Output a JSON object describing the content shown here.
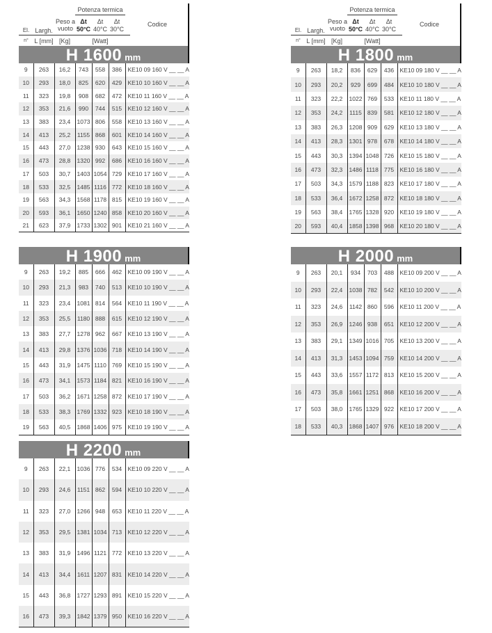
{
  "header": {
    "potenza_termica": "Potenza termica",
    "el": "El.",
    "largh": "Largh.",
    "peso": "Peso a vuoto",
    "dt50": "Δt",
    "dt50_temp": "50°C",
    "dt40": "Δt",
    "dt40_temp": "40°C",
    "dt30": "Δt",
    "dt30_temp": "30°C",
    "codice": "Codice",
    "unit_n": "n°",
    "unit_l": "L [mm]",
    "unit_kg": "[Kg]",
    "unit_watt": "[Watt]"
  },
  "tables": [
    {
      "title": "H 1600",
      "unit": "mm",
      "rows": [
        [
          "9",
          "263",
          "16,2",
          "743",
          "558",
          "386",
          "KE10 09 160 V __ __ A"
        ],
        [
          "10",
          "293",
          "18,0",
          "825",
          "620",
          "429",
          "KE10 10 160 V __ __ A"
        ],
        [
          "11",
          "323",
          "19,8",
          "908",
          "682",
          "472",
          "KE10 11 160 V __ __ A"
        ],
        [
          "12",
          "353",
          "21,6",
          "990",
          "744",
          "515",
          "KE10 12 160 V __ __ A"
        ],
        [
          "13",
          "383",
          "23,4",
          "1073",
          "806",
          "558",
          "KE10 13 160 V __ __ A"
        ],
        [
          "14",
          "413",
          "25,2",
          "1155",
          "868",
          "601",
          "KE10 14 160 V __ __ A"
        ],
        [
          "15",
          "443",
          "27,0",
          "1238",
          "930",
          "643",
          "KE10 15 160 V __ __ A"
        ],
        [
          "16",
          "473",
          "28,8",
          "1320",
          "992",
          "686",
          "KE10 16 160 V __ __ A"
        ],
        [
          "17",
          "503",
          "30,7",
          "1403",
          "1054",
          "729",
          "KE10 17 160 V __ __ A"
        ],
        [
          "18",
          "533",
          "32,5",
          "1485",
          "1116",
          "772",
          "KE10 18 160 V __ __ A"
        ],
        [
          "19",
          "563",
          "34,3",
          "1568",
          "1178",
          "815",
          "KE10 19 160 V __ __ A"
        ],
        [
          "20",
          "593",
          "36,1",
          "1650",
          "1240",
          "858",
          "KE10 20 160 V __ __ A"
        ],
        [
          "21",
          "623",
          "37,9",
          "1733",
          "1302",
          "901",
          "KE10 21 160 V __ __ A"
        ]
      ]
    },
    {
      "title": "H 1800",
      "unit": "mm",
      "rows": [
        [
          "9",
          "263",
          "18,2",
          "836",
          "629",
          "436",
          "KE10 09 180 V __ __ A"
        ],
        [
          "10",
          "293",
          "20,2",
          "929",
          "699",
          "484",
          "KE10 10 180 V __ __ A"
        ],
        [
          "11",
          "323",
          "22,2",
          "1022",
          "769",
          "533",
          "KE10 11 180 V __ __ A"
        ],
        [
          "12",
          "353",
          "24,2",
          "1115",
          "839",
          "581",
          "KE10 12 180 V __ __ A"
        ],
        [
          "13",
          "383",
          "26,3",
          "1208",
          "909",
          "629",
          "KE10 13 180 V __ __ A"
        ],
        [
          "14",
          "413",
          "28,3",
          "1301",
          "978",
          "678",
          "KE10 14 180 V __ __ A"
        ],
        [
          "15",
          "443",
          "30,3",
          "1394",
          "1048",
          "726",
          "KE10 15 180 V __ __ A"
        ],
        [
          "16",
          "473",
          "32,3",
          "1486",
          "1118",
          "775",
          "KE10 16 180 V __ __ A"
        ],
        [
          "17",
          "503",
          "34,3",
          "1579",
          "1188",
          "823",
          "KE10 17 180 V __ __ A"
        ],
        [
          "18",
          "533",
          "36,4",
          "1672",
          "1258",
          "872",
          "KE10 18 180 V __ __ A"
        ],
        [
          "19",
          "563",
          "38,4",
          "1765",
          "1328",
          "920",
          "KE10 19 180 V __ __ A"
        ],
        [
          "20",
          "593",
          "40,4",
          "1858",
          "1398",
          "968",
          "KE10 20 180 V __ __ A"
        ]
      ]
    },
    {
      "title": "H 1900",
      "unit": "mm",
      "rows": [
        [
          "9",
          "263",
          "19,2",
          "885",
          "666",
          "462",
          "KE10 09 190 V __ __ A"
        ],
        [
          "10",
          "293",
          "21,3",
          "983",
          "740",
          "513",
          "KE10 10 190 V __ __ A"
        ],
        [
          "11",
          "323",
          "23,4",
          "1081",
          "814",
          "564",
          "KE10 11 190 V __ __ A"
        ],
        [
          "12",
          "353",
          "25,5",
          "1180",
          "888",
          "615",
          "KE10 12 190 V __ __ A"
        ],
        [
          "13",
          "383",
          "27,7",
          "1278",
          "962",
          "667",
          "KE10 13 190 V __ __ A"
        ],
        [
          "14",
          "413",
          "29,8",
          "1376",
          "1036",
          "718",
          "KE10 14 190 V __ __ A"
        ],
        [
          "15",
          "443",
          "31,9",
          "1475",
          "1110",
          "769",
          "KE10 15 190 V __ __ A"
        ],
        [
          "16",
          "473",
          "34,1",
          "1573",
          "1184",
          "821",
          "KE10 16 190 V __ __ A"
        ],
        [
          "17",
          "503",
          "36,2",
          "1671",
          "1258",
          "872",
          "KE10 17 190 V __ __ A"
        ],
        [
          "18",
          "533",
          "38,3",
          "1769",
          "1332",
          "923",
          "KE10 18 190 V __ __ A"
        ],
        [
          "19",
          "563",
          "40,5",
          "1868",
          "1406",
          "975",
          "KE10 19 190 V __ __ A"
        ]
      ]
    },
    {
      "title": "H 2000",
      "unit": "mm",
      "rows": [
        [
          "9",
          "263",
          "20,1",
          "934",
          "703",
          "488",
          "KE10 09 200 V __ __ A"
        ],
        [
          "10",
          "293",
          "22,4",
          "1038",
          "782",
          "542",
          "KE10 10 200 V __ __ A"
        ],
        [
          "11",
          "323",
          "24,6",
          "1142",
          "860",
          "596",
          "KE10 11 200 V __ __ A"
        ],
        [
          "12",
          "353",
          "26,9",
          "1246",
          "938",
          "651",
          "KE10 12 200 V __ __ A"
        ],
        [
          "13",
          "383",
          "29,1",
          "1349",
          "1016",
          "705",
          "KE10 13 200 V __ __ A"
        ],
        [
          "14",
          "413",
          "31,3",
          "1453",
          "1094",
          "759",
          "KE10 14 200 V __ __ A"
        ],
        [
          "15",
          "443",
          "33,6",
          "1557",
          "1172",
          "813",
          "KE10 15 200 V __ __ A"
        ],
        [
          "16",
          "473",
          "35,8",
          "1661",
          "1251",
          "868",
          "KE10 16 200 V __ __ A"
        ],
        [
          "17",
          "503",
          "38,0",
          "1765",
          "1329",
          "922",
          "KE10 17 200 V __ __ A"
        ],
        [
          "18",
          "533",
          "40,3",
          "1868",
          "1407",
          "976",
          "KE10 18 200 V __ __ A"
        ]
      ]
    },
    {
      "title": "H 2200",
      "unit": "mm",
      "rows": [
        [
          "9",
          "263",
          "22,1",
          "1036",
          "776",
          "534",
          "KE10 09 220 V __ __ A"
        ],
        [
          "10",
          "293",
          "24,6",
          "1151",
          "862",
          "594",
          "KE10 10 220 V __ __ A"
        ],
        [
          "11",
          "323",
          "27,0",
          "1266",
          "948",
          "653",
          "KE10 11 220 V __ __ A"
        ],
        [
          "12",
          "353",
          "29,5",
          "1381",
          "1034",
          "713",
          "KE10 12 220 V __ __ A"
        ],
        [
          "13",
          "383",
          "31,9",
          "1496",
          "1121",
          "772",
          "KE10 13 220 V __ __ A"
        ],
        [
          "14",
          "413",
          "34,4",
          "1611",
          "1207",
          "831",
          "KE10 14 220 V __ __ A"
        ],
        [
          "15",
          "443",
          "36,8",
          "1727",
          "1293",
          "891",
          "KE10 15 220 V __ __ A"
        ],
        [
          "16",
          "473",
          "39,3",
          "1842",
          "1379",
          "950",
          "KE10 16 220 V __ __ A"
        ]
      ]
    }
  ]
}
